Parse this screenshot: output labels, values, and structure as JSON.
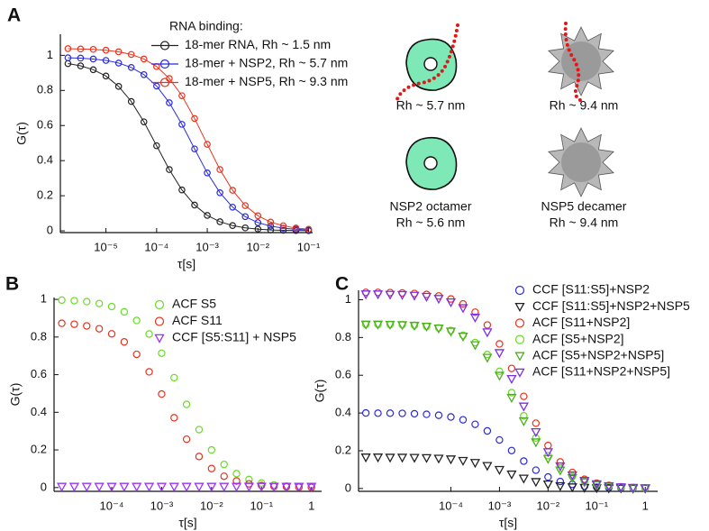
{
  "chart_data": [
    {
      "type": "line",
      "panel": "A",
      "xlabel": "τ[s]",
      "ylabel": "G(τ)",
      "xscale": "log",
      "grid": false,
      "legend": "upper right",
      "legend_title": "RNA binding:",
      "xlim": [
        1.26e-06,
        0.12
      ],
      "ylim": [
        -0.01,
        1.12
      ],
      "xticks": [
        {
          "value": 1e-05,
          "label": "10⁻⁵"
        },
        {
          "value": 0.0001,
          "label": "10⁻⁴"
        },
        {
          "value": 0.001,
          "label": "10⁻³"
        },
        {
          "value": 0.01,
          "label": "10⁻²"
        },
        {
          "value": 0.1,
          "label": "10⁻¹"
        }
      ],
      "yticks": [
        0,
        0.2,
        0.4,
        0.6,
        0.8,
        1
      ],
      "x": [
        1.78e-06,
        3.16e-06,
        5.62e-06,
        1e-05,
        1.78e-05,
        3.16e-05,
        5.62e-05,
        0.0001,
        0.000178,
        0.000316,
        0.000562,
        0.001,
        0.00178,
        0.00316,
        0.00562,
        0.01,
        0.0178,
        0.0316,
        0.0562,
        0.1
      ],
      "series": [
        {
          "name": "18-mer RNA, Rh ~ 1.5 nm",
          "color": "#222222",
          "marker": "o",
          "values": [
            0.953,
            0.94,
            0.918,
            0.882,
            0.823,
            0.737,
            0.621,
            0.485,
            0.349,
            0.233,
            0.147,
            0.088,
            0.052,
            0.03,
            0.017,
            0.01,
            0.005,
            0.003,
            0.002,
            0.001
          ]
        },
        {
          "name": "18-mer + NSP2, Rh ~ 5.7 nm",
          "color": "#2a2ad8",
          "marker": "o",
          "values": [
            0.986,
            0.984,
            0.979,
            0.971,
            0.956,
            0.931,
            0.89,
            0.825,
            0.73,
            0.607,
            0.467,
            0.33,
            0.217,
            0.135,
            0.081,
            0.047,
            0.027,
            0.015,
            0.009,
            0.005
          ]
        },
        {
          "name": "18-mer + NSP5, Rh ~ 9.3 nm",
          "color": "#e8321e",
          "marker": "o",
          "values": [
            1.038,
            1.036,
            1.034,
            1.029,
            1.02,
            1.005,
            0.979,
            0.936,
            0.868,
            0.77,
            0.64,
            0.493,
            0.349,
            0.231,
            0.144,
            0.086,
            0.05,
            0.029,
            0.016,
            0.009
          ]
        }
      ]
    },
    {
      "type": "scatter",
      "panel": "B",
      "xlabel": "τ[s]",
      "ylabel": "G(τ)",
      "xscale": "log",
      "grid": false,
      "legend": "upper right",
      "xlim": [
        7e-06,
        1.6
      ],
      "ylim": [
        -0.02,
        1.01
      ],
      "xticks": [
        {
          "value": 0.0001,
          "label": "10⁻⁴"
        },
        {
          "value": 0.001,
          "label": "10⁻³"
        },
        {
          "value": 0.01,
          "label": "10⁻²"
        },
        {
          "value": 0.1,
          "label": "10⁻¹"
        },
        1
      ],
      "yticks": [
        0,
        0.2,
        0.4,
        0.6,
        0.8,
        1
      ],
      "x": [
        1e-05,
        1.78e-05,
        3.16e-05,
        5.62e-05,
        0.0001,
        0.000178,
        0.000316,
        0.000562,
        0.001,
        0.00178,
        0.00316,
        0.00562,
        0.01,
        0.0178,
        0.0316,
        0.0562,
        0.1,
        0.178,
        0.316,
        0.562,
        1
      ],
      "series": [
        {
          "name": "ACF S5",
          "color": "#66dd22",
          "marker": "o",
          "values": [
            0.996,
            0.993,
            0.988,
            0.978,
            0.962,
            0.934,
            0.888,
            0.816,
            0.714,
            0.584,
            0.442,
            0.308,
            0.2,
            0.123,
            0.074,
            0.043,
            0.024,
            0.014,
            0.008,
            0.004,
            0.002
          ]
        },
        {
          "name": "ACF S11",
          "color": "#e8321e",
          "marker": "o",
          "values": [
            0.873,
            0.868,
            0.859,
            0.844,
            0.817,
            0.774,
            0.708,
            0.615,
            0.497,
            0.371,
            0.257,
            0.165,
            0.101,
            0.06,
            0.035,
            0.02,
            0.011,
            0.006,
            0.004,
            0.002,
            0.001
          ]
        },
        {
          "name": "CCF [S5:S11] + NSP5",
          "color": "#9b30ff",
          "marker": "v",
          "values": [
            0.005,
            0.005,
            0.005,
            0.005,
            0.005,
            0.005,
            0.005,
            0.005,
            0.005,
            0.005,
            0.005,
            0.005,
            0.005,
            0.005,
            0.005,
            0.005,
            0.005,
            0.005,
            0.005,
            0.005,
            0.005
          ]
        }
      ]
    },
    {
      "type": "scatter",
      "panel": "C",
      "xlabel": "τ[s]",
      "ylabel": "G(τ)",
      "xscale": "log",
      "grid": false,
      "legend": "upper right",
      "xlim": [
        1.26e-06,
        1.8
      ],
      "ylim": [
        -0.015,
        1.05
      ],
      "xticks": [
        {
          "value": 0.0001,
          "label": "10⁻⁴"
        },
        {
          "value": 0.001,
          "label": "10⁻³"
        },
        {
          "value": 0.01,
          "label": "10⁻²"
        },
        {
          "value": 0.1,
          "label": "10⁻¹"
        },
        1
      ],
      "yticks": [
        0,
        0.2,
        0.4,
        0.6,
        0.8,
        1
      ],
      "x": [
        1.78e-06,
        3.16e-06,
        5.62e-06,
        1e-05,
        1.78e-05,
        3.16e-05,
        5.62e-05,
        0.0001,
        0.000178,
        0.000316,
        0.000562,
        0.001,
        0.00178,
        0.00316,
        0.00562,
        0.01,
        0.0178,
        0.0316,
        0.0562,
        0.1,
        0.178,
        0.316,
        0.562,
        1
      ],
      "series": [
        {
          "name": "CCF [S11:S5]+NSP2",
          "color": "#2a2ad8",
          "marker": "o",
          "values": [
            0.4,
            0.399,
            0.399,
            0.398,
            0.396,
            0.393,
            0.388,
            0.379,
            0.364,
            0.34,
            0.305,
            0.257,
            0.201,
            0.145,
            0.097,
            0.061,
            0.037,
            0.022,
            0.012,
            0.007,
            0.004,
            0.002,
            0.001,
            0.001
          ]
        },
        {
          "name": "CCF [S11:S5]+NSP2+NSP5",
          "color": "#222222",
          "marker": "v",
          "values": [
            0.165,
            0.165,
            0.164,
            0.164,
            0.163,
            0.162,
            0.159,
            0.155,
            0.147,
            0.136,
            0.12,
            0.099,
            0.075,
            0.053,
            0.035,
            0.022,
            0.013,
            0.007,
            0.004,
            0.002,
            0.001,
            0.001,
            0,
            0
          ]
        },
        {
          "name": "ACF [S11+NSP2]",
          "color": "#e8321e",
          "marker": "o",
          "values": [
            1.039,
            1.039,
            1.038,
            1.036,
            1.033,
            1.028,
            1.02,
            1.004,
            0.978,
            0.934,
            0.866,
            0.766,
            0.636,
            0.488,
            0.346,
            0.228,
            0.141,
            0.085,
            0.049,
            0.028,
            0.016,
            0.009,
            0.005,
            0.003
          ]
        },
        {
          "name": "ACF [S5+NSP2]",
          "color": "#66dd22",
          "marker": "o",
          "values": [
            0.869,
            0.869,
            0.868,
            0.867,
            0.864,
            0.859,
            0.851,
            0.837,
            0.812,
            0.773,
            0.71,
            0.621,
            0.508,
            0.385,
            0.268,
            0.174,
            0.107,
            0.064,
            0.037,
            0.021,
            0.012,
            0.007,
            0.004,
            0.002
          ]
        },
        {
          "name": "ACF [S5+NSP2+NSP5]",
          "color": "#4caf1e",
          "marker": "v",
          "values": [
            0.869,
            0.869,
            0.868,
            0.866,
            0.863,
            0.858,
            0.848,
            0.832,
            0.805,
            0.76,
            0.693,
            0.598,
            0.481,
            0.357,
            0.245,
            0.157,
            0.096,
            0.056,
            0.033,
            0.019,
            0.011,
            0.006,
            0.003,
            0.002
          ]
        },
        {
          "name": "ACF [S11+NSP2+NSP5]",
          "color": "#7b2ee8",
          "marker": "v",
          "values": [
            1.029,
            1.029,
            1.027,
            1.026,
            1.022,
            1.016,
            1.005,
            0.987,
            0.956,
            0.906,
            0.828,
            0.718,
            0.581,
            0.435,
            0.299,
            0.193,
            0.118,
            0.07,
            0.041,
            0.023,
            0.013,
            0.007,
            0.004,
            0.002
          ]
        }
      ]
    }
  ],
  "diagram": {
    "labels": [
      "Rh ~ 5.7 nm",
      "Rh ~ 9.4 nm",
      "NSP2 octamer",
      "Rh ~ 5.6 nm",
      "NSP5 decamer",
      "Rh ~ 9.4 nm"
    ]
  }
}
